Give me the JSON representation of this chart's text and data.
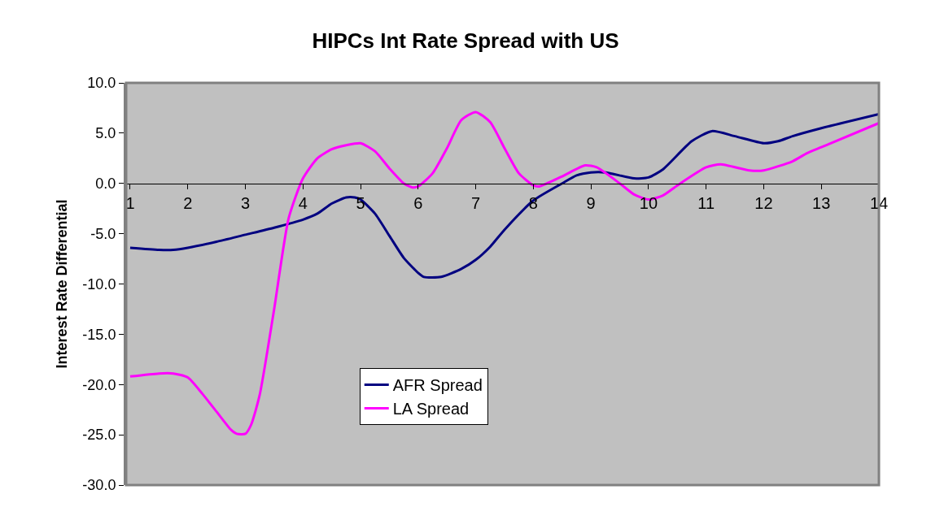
{
  "chart_data": {
    "type": "line",
    "title": "HIPCs Int Rate Spread with US",
    "ylabel": "Interest Rate Differential",
    "xlim": [
      0.93,
      14
    ],
    "xticks": [
      1,
      2,
      3,
      4,
      5,
      6,
      7,
      8,
      9,
      10,
      11,
      12,
      13,
      14
    ],
    "ylim": [
      -30,
      10
    ],
    "yticks": [
      {
        "value": -30,
        "label": "-30.0"
      },
      {
        "value": -25,
        "label": "-25.0"
      },
      {
        "value": -20,
        "label": "-20.0"
      },
      {
        "value": -15,
        "label": "-15.0"
      },
      {
        "value": -10,
        "label": "-10.0"
      },
      {
        "value": -5,
        "label": "-5.0"
      },
      {
        "value": 0,
        "label": "0.0"
      },
      {
        "value": 5,
        "label": "5.0"
      },
      {
        "value": 10,
        "label": "10.0"
      }
    ],
    "grid": false,
    "legend": "bottom",
    "marker": "none",
    "line_style": "solid",
    "series": [
      {
        "name": "AFR Spread",
        "color": "#000080",
        "x": [
          1,
          1.5,
          1.75,
          2,
          2.5,
          3,
          3.5,
          4,
          4.25,
          4.5,
          4.75,
          4.9,
          5,
          5.25,
          5.5,
          5.75,
          6,
          6.1,
          6.4,
          6.75,
          7,
          7.25,
          7.5,
          8,
          8.5,
          8.75,
          9,
          9.25,
          9.75,
          10,
          10.25,
          10.75,
          11.1,
          11.5,
          12,
          12.25,
          12.5,
          13,
          14
        ],
        "values": [
          -6.4,
          -6.6,
          -6.6,
          -6.4,
          -5.8,
          -5.1,
          -4.4,
          -3.6,
          -3.0,
          -2.0,
          -1.4,
          -1.4,
          -1.6,
          -3.0,
          -5.2,
          -7.4,
          -8.9,
          -9.3,
          -9.3,
          -8.5,
          -7.6,
          -6.3,
          -4.6,
          -1.7,
          0.0,
          0.8,
          1.1,
          1.1,
          0.5,
          0.6,
          1.4,
          4.2,
          5.2,
          4.7,
          4.0,
          4.2,
          4.7,
          5.5,
          6.9
        ]
      },
      {
        "name": "LA Spread",
        "color": "#ff00ff",
        "x": [
          1,
          1.5,
          1.75,
          2,
          2.25,
          2.5,
          2.75,
          2.85,
          3,
          3.1,
          3.25,
          3.5,
          3.75,
          4,
          4.25,
          4.5,
          4.75,
          5,
          5.25,
          5.5,
          5.75,
          5.9,
          6,
          6.25,
          6.5,
          6.75,
          7,
          7.25,
          7.5,
          7.75,
          8,
          8.1,
          8.5,
          8.9,
          9.1,
          9.5,
          9.75,
          10,
          10.25,
          10.5,
          11,
          11.25,
          11.75,
          12,
          12.5,
          12.75,
          13,
          14
        ],
        "values": [
          -19.2,
          -18.9,
          -18.9,
          -19.3,
          -20.9,
          -22.7,
          -24.5,
          -24.9,
          -24.9,
          -24.0,
          -21.0,
          -12.5,
          -3.5,
          0.5,
          2.5,
          3.4,
          3.8,
          4.0,
          3.2,
          1.5,
          0.0,
          -0.4,
          -0.3,
          1.0,
          3.5,
          6.3,
          7.1,
          6.1,
          3.5,
          1.0,
          -0.2,
          -0.3,
          0.7,
          1.8,
          1.6,
          0.0,
          -1.1,
          -1.6,
          -1.2,
          -0.2,
          1.6,
          1.9,
          1.3,
          1.3,
          2.2,
          3.0,
          3.6,
          6.0
        ]
      }
    ]
  }
}
